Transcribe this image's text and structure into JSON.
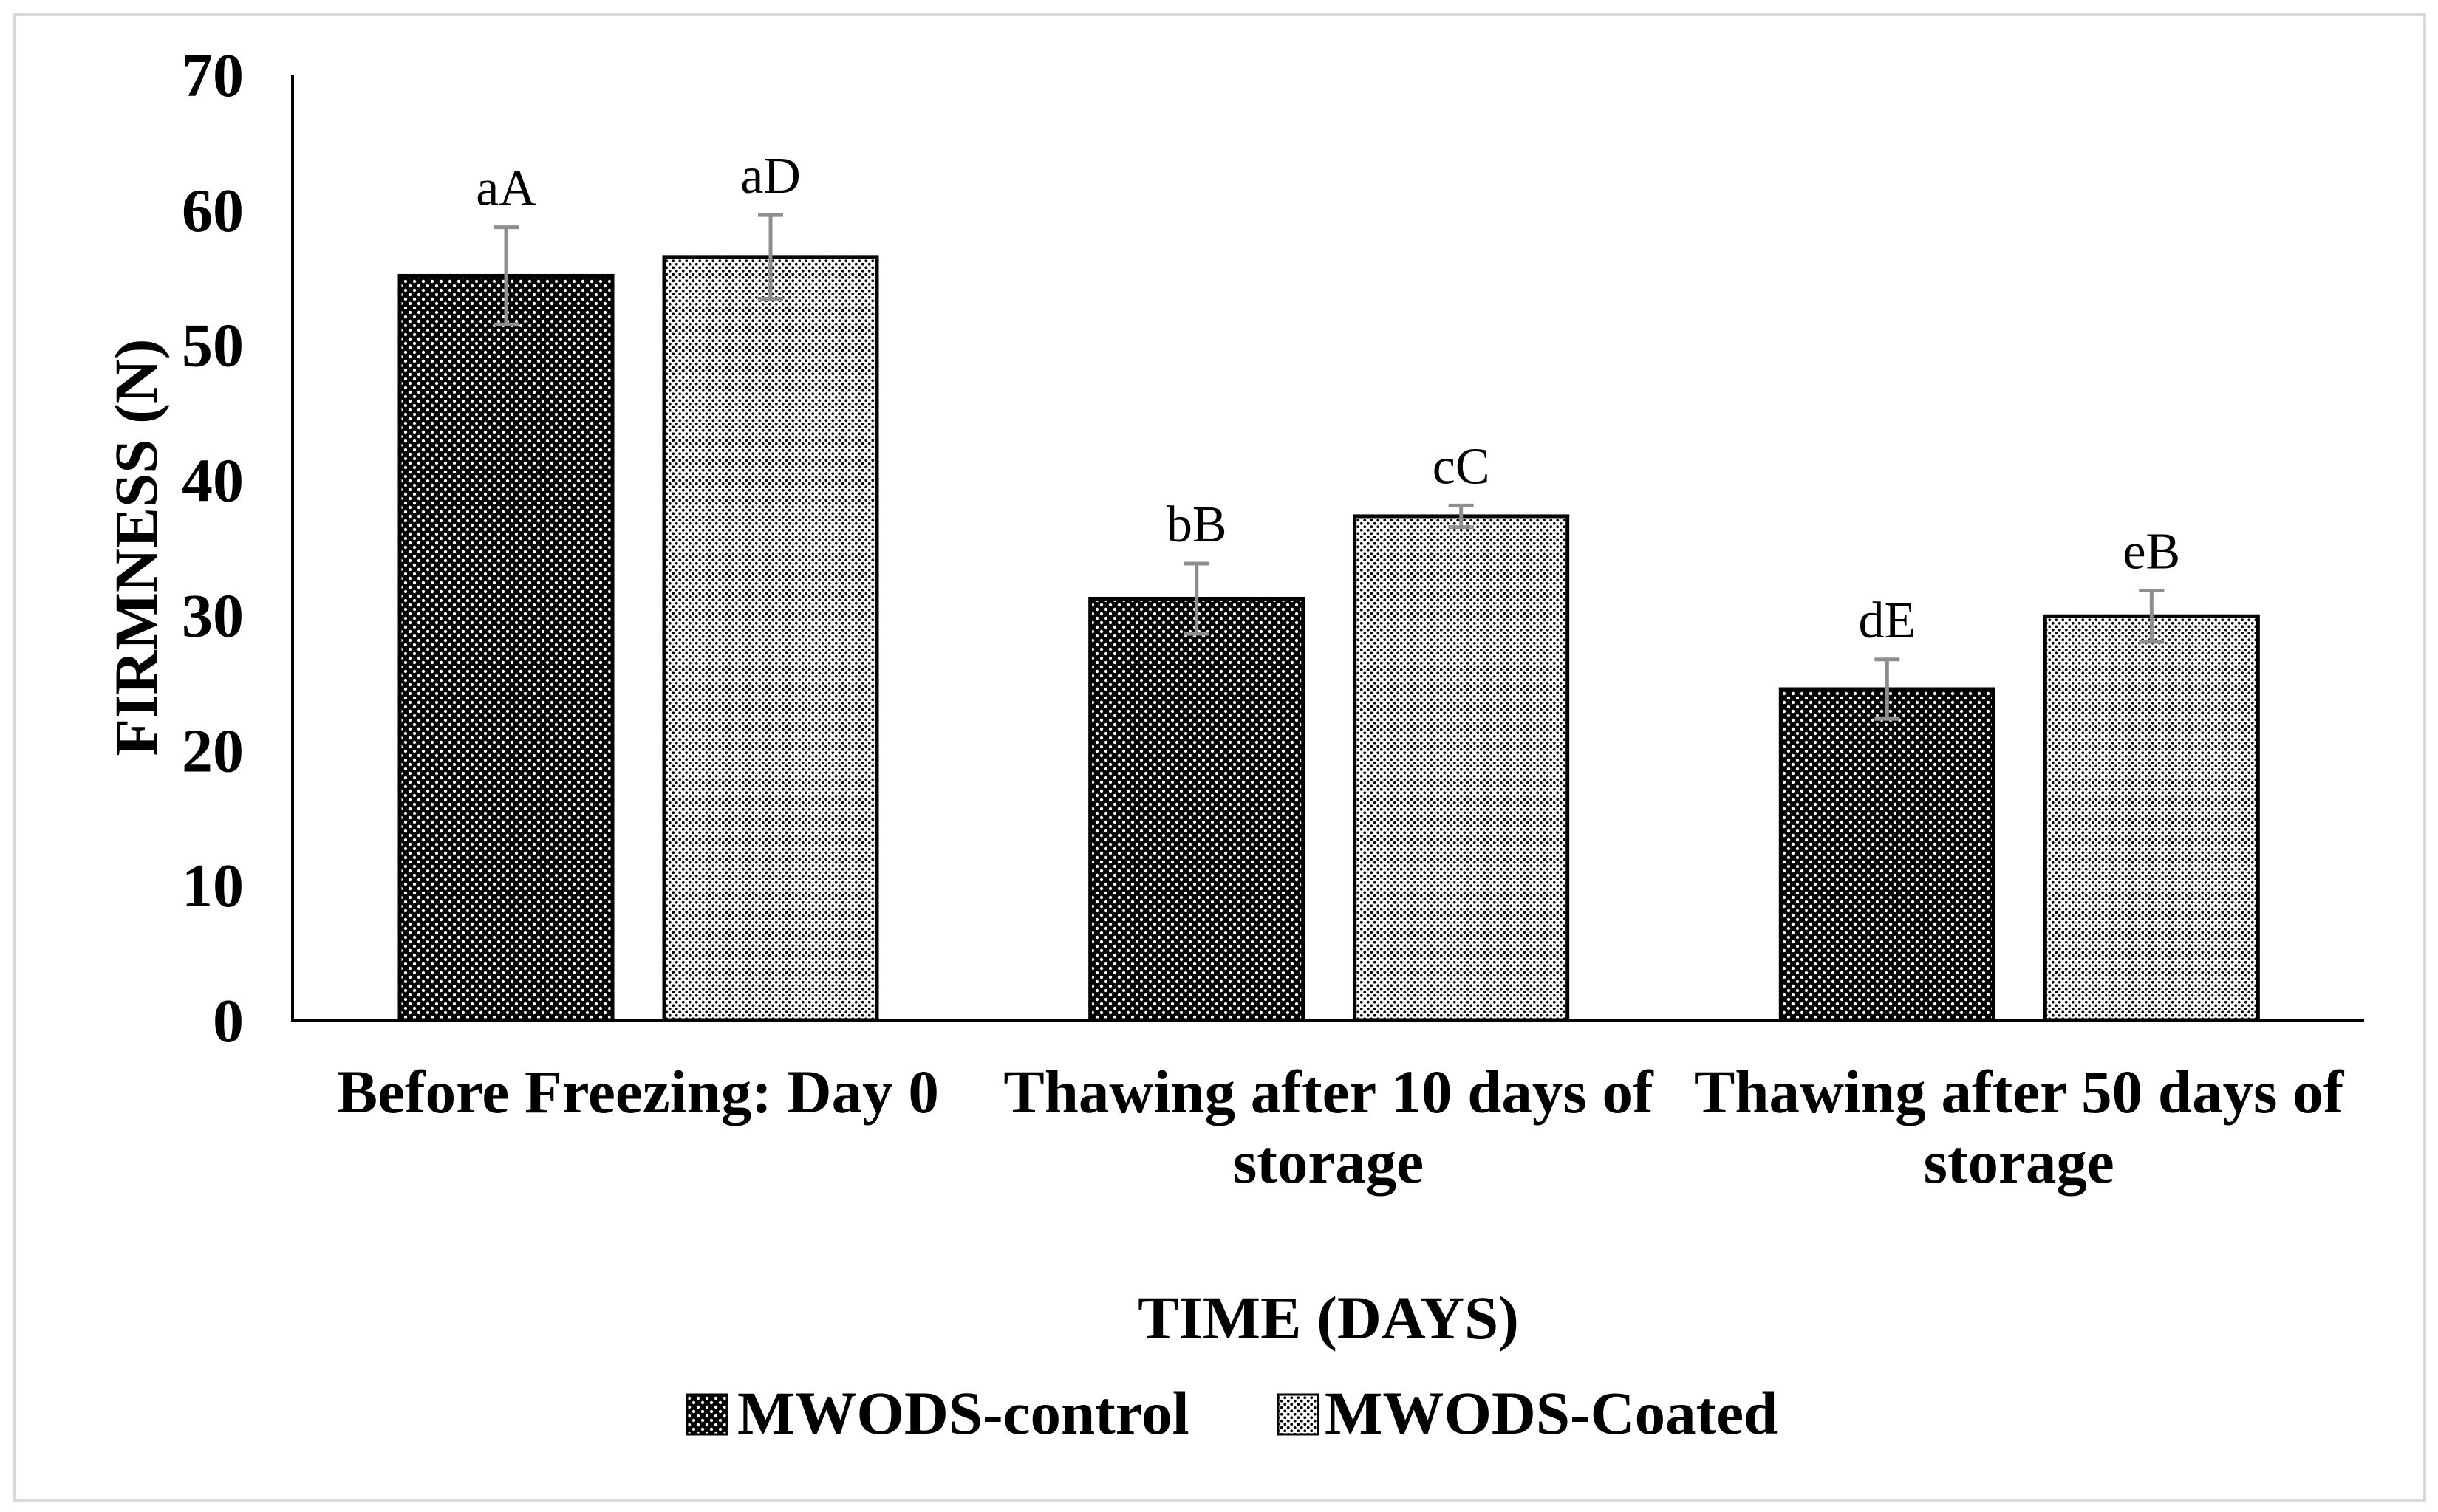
{
  "chart_data": {
    "type": "bar",
    "title": "",
    "xlabel": "TIME (DAYS)",
    "ylabel": "FIRMNESS (N)",
    "ylim": [
      0,
      70
    ],
    "yticks": [
      "0",
      "10",
      "20",
      "30",
      "40",
      "50",
      "60",
      "70"
    ],
    "categories": [
      "Before Freezing: Day 0",
      "Thawing after 10 days of storage",
      "Thawing after 50 days of storage"
    ],
    "series": [
      {
        "name": "MWODS-control",
        "values": [
          55.1,
          31.2,
          24.5
        ],
        "errors": [
          3.6,
          2.6,
          2.2
        ],
        "labels": [
          "aA",
          "bB",
          "dE"
        ]
      },
      {
        "name": "MWODS-Coated",
        "values": [
          56.5,
          37.3,
          29.9
        ],
        "errors": [
          3.1,
          0.8,
          1.9
        ],
        "labels": [
          "aD",
          "cC",
          "eB"
        ]
      }
    ],
    "legend_position": "bottom",
    "grid": false,
    "axis_color": "#000000",
    "error_bar_color": "#8e8e8e",
    "frame_color": "#d9d9d9"
  }
}
